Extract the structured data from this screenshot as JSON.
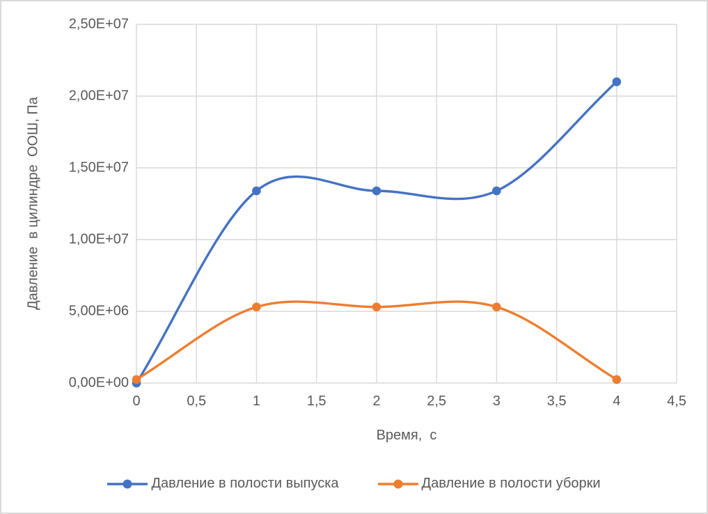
{
  "chart_data": {
    "type": "line",
    "title": "",
    "xlabel": "Время,  с",
    "ylabel": "Давление  в цилиндре  ООШ, Па",
    "x": [
      0,
      1,
      2,
      3,
      4
    ],
    "series": [
      {
        "name": "Давление в полости выпуска",
        "color": "#4472C4",
        "values": [
          0,
          13400000,
          13400000,
          13400000,
          21000000
        ]
      },
      {
        "name": "Давление в полости уборки",
        "color": "#ED7D31",
        "values": [
          250000,
          5300000,
          5300000,
          5300000,
          250000
        ]
      }
    ],
    "x_axis": {
      "min": 0,
      "max": 4.5,
      "step": 0.5,
      "tick_labels": [
        "0",
        "0,5",
        "1",
        "1,5",
        "2",
        "2,5",
        "3",
        "3,5",
        "4",
        "4,5"
      ]
    },
    "y_axis": {
      "min": 0,
      "max": 25000000,
      "step": 5000000,
      "tick_labels": [
        "0,00E+00",
        "5,00E+06",
        "1,00E+07",
        "1,50E+07",
        "2,00E+07",
        "2,50E+07"
      ]
    },
    "grid": true,
    "smooth": true,
    "legend_position": "bottom"
  },
  "style": {
    "gridline_color": "#D9D9D9",
    "text_color": "#595959",
    "background": "#FFFFFF",
    "border_color": "#D9D9D9"
  }
}
